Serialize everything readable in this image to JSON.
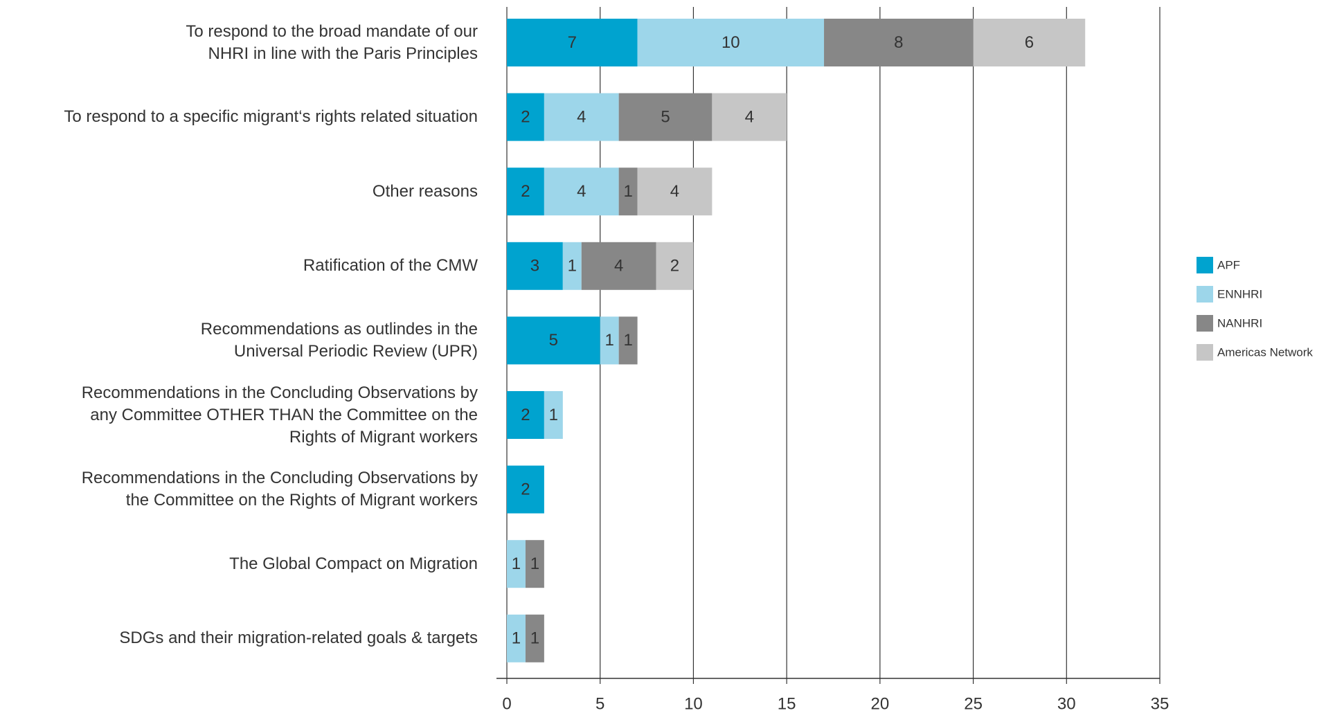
{
  "chart_data": {
    "type": "bar",
    "orientation": "horizontal",
    "stacked": true,
    "categories": [
      "To respond to the broad mandate of our\nNHRI in line with the Paris Principles",
      "To respond to a specific migrant‘s rights related situation",
      "Other reasons",
      "Ratification of the CMW",
      "Recommendations as outlindes in the\nUniversal Periodic Review (UPR)",
      "Recommendations in the Concluding Observations by\nany Committee OTHER THAN the Committee on the\nRights of Migrant workers",
      "Recommendations in the Concluding Observations by\nthe Committee on the Rights of Migrant workers",
      "The Global Compact on Migration",
      "SDGs and their migration-related goals & targets"
    ],
    "series": [
      {
        "name": "APF",
        "color": "#00a3cf",
        "values": [
          7,
          2,
          2,
          3,
          5,
          2,
          2,
          null,
          null
        ]
      },
      {
        "name": "ENNHRI",
        "color": "#9dd6ea",
        "values": [
          10,
          4,
          4,
          1,
          1,
          1,
          null,
          1,
          1
        ]
      },
      {
        "name": "NANHRI",
        "color": "#878787",
        "values": [
          8,
          5,
          1,
          4,
          1,
          null,
          null,
          1,
          1
        ]
      },
      {
        "name": "Americas Network",
        "color": "#c6c6c6",
        "values": [
          6,
          4,
          4,
          2,
          null,
          null,
          null,
          null,
          null
        ]
      }
    ],
    "xlim": [
      0,
      35
    ],
    "xticks": [
      0,
      5,
      10,
      15,
      20,
      25,
      30,
      35
    ],
    "grid": true,
    "legend": "right"
  }
}
